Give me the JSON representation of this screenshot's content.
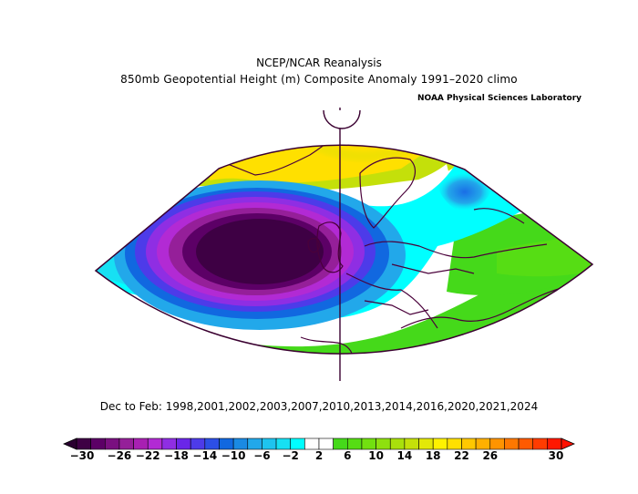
{
  "title": {
    "line1": "NCEP/NCAR Reanalysis",
    "line2": "850mb Geopotential Height (m) Composite Anomaly 1991–2020 climo",
    "credit": "NOAA Physical Sciences Laboratory"
  },
  "years_label": "Dec to Feb: 1998,2001,2002,2003,2007,2010,2013,2014,2016,2020,2021,2024",
  "colorbar": {
    "ticks": [
      "−30",
      "−26",
      "−22",
      "−18",
      "−14",
      "−10",
      "−6",
      "−2",
      "2",
      "6",
      "10",
      "14",
      "18",
      "22",
      "26",
      "30"
    ],
    "colors": [
      "#3e0044",
      "#5c0066",
      "#7a1080",
      "#951f99",
      "#a820b2",
      "#b22ad4",
      "#8f2ee3",
      "#6a26e8",
      "#4d3be9",
      "#2c4fe6",
      "#1168e0",
      "#1a8ae3",
      "#22a8ea",
      "#1ec4ef",
      "#17e0f3",
      "#00ffff",
      "#ffffff",
      "#ffffff",
      "#45d91a",
      "#56dd14",
      "#72e010",
      "#8ee00f",
      "#a9e00c",
      "#c4e00a",
      "#e3e808",
      "#fff200",
      "#ffe000",
      "#ffc800",
      "#ffb000",
      "#ff9400",
      "#ff7800",
      "#ff5a00",
      "#ff3c00",
      "#ff1800"
    ]
  }
}
